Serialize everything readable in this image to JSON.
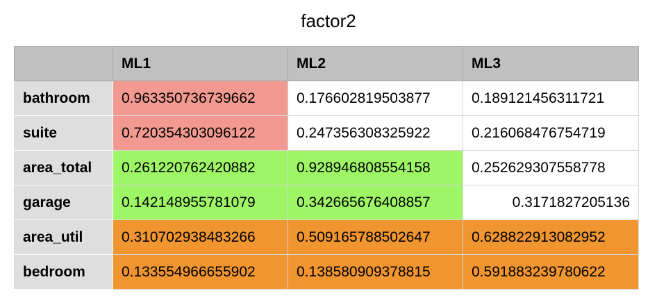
{
  "title": "factor2",
  "columns": [
    "ML1",
    "ML2",
    "ML3"
  ],
  "colors": {
    "red": "#f29a91",
    "green": "#9ef566",
    "orange": "#f0952f",
    "white": "#ffffff"
  },
  "rows": [
    {
      "label": "bathroom",
      "values": [
        "0.963350736739662",
        "0.176602819503877",
        "0.189121456311721"
      ],
      "colors": [
        "red",
        "white",
        "white"
      ]
    },
    {
      "label": "suite",
      "values": [
        "0.720354303096122",
        "0.247356308325922",
        "0.216068476754719"
      ],
      "colors": [
        "red",
        "white",
        "white"
      ]
    },
    {
      "label": "area_total",
      "values": [
        "0.261220762420882",
        "0.928946808554158",
        "0.252629307558778"
      ],
      "colors": [
        "green",
        "green",
        "white"
      ]
    },
    {
      "label": "garage",
      "values": [
        "0.142148955781079",
        "0.342665676408857",
        "0.3171827205136"
      ],
      "colors": [
        "green",
        "green",
        "white"
      ]
    },
    {
      "label": "area_util",
      "values": [
        "0.310702938483266",
        "0.509165788502647",
        "0.628822913082952"
      ],
      "colors": [
        "orange",
        "orange",
        "orange"
      ]
    },
    {
      "label": "bedroom",
      "values": [
        "0.133554966655902",
        "0.138580909378815",
        "0.591883239780622"
      ],
      "colors": [
        "orange",
        "orange",
        "orange"
      ]
    }
  ]
}
